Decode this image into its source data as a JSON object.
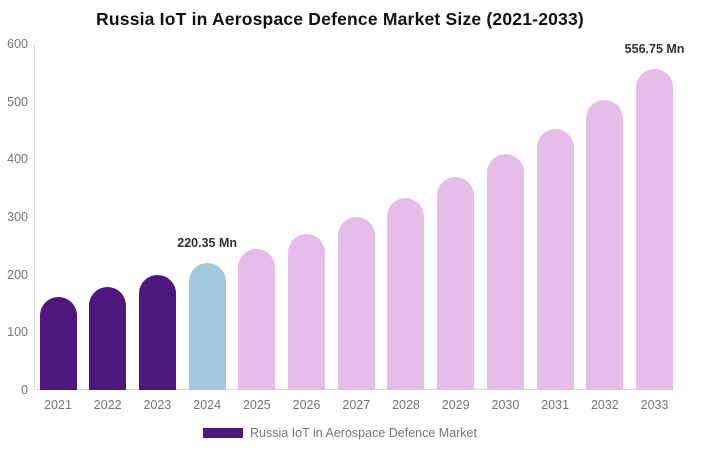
{
  "title": "Russia IoT in Aerospace Defence Market Size (2021-2033)",
  "chart_data": {
    "type": "bar",
    "title": "Russia IoT in Aerospace Defence Market Size (2021-2033)",
    "categories": [
      "2021",
      "2022",
      "2023",
      "2024",
      "2025",
      "2026",
      "2027",
      "2028",
      "2029",
      "2030",
      "2031",
      "2032",
      "2033"
    ],
    "values": [
      161.76,
      179.31,
      198.78,
      220.35,
      244.26,
      270.77,
      300.16,
      332.74,
      368.85,
      408.89,
      453.27,
      502.46,
      556.75
    ],
    "unit": "Mn",
    "xlabel": "",
    "ylabel": "",
    "ylim": [
      0,
      600
    ],
    "yticks": [
      0,
      100,
      200,
      300,
      400,
      500,
      600
    ],
    "grid": false,
    "legend_position": "bottom",
    "color_roles": [
      "historical",
      "historical",
      "historical",
      "current",
      "forecast",
      "forecast",
      "forecast",
      "forecast",
      "forecast",
      "forecast",
      "forecast",
      "forecast",
      "forecast"
    ],
    "annotations": [
      {
        "category": "2024",
        "text": "220.35 Mn"
      },
      {
        "category": "2033",
        "text": "556.75 Mn"
      }
    ]
  },
  "colors": {
    "historical": "#4E177E",
    "current": "#A2C8DE",
    "forecast": "#E5BDE9",
    "axis_line": "#d9d9d9",
    "tick_text": "#757575",
    "title_text": "#111111",
    "annotation_text": "#303030"
  },
  "legend": {
    "label": "Russia IoT in Aerospace Defence Market",
    "swatch_color": "#4E177E"
  }
}
